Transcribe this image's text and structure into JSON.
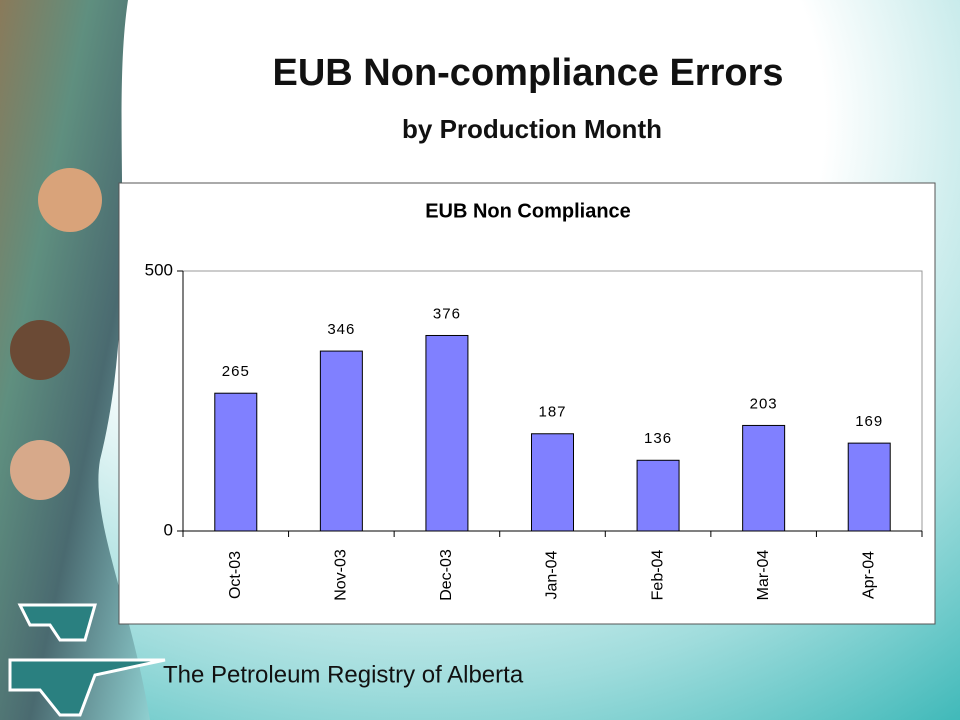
{
  "slide_title": "EUB Non-compliance Errors",
  "slide_subtitle": "by Production Month",
  "footer": "The Petroleum Registry of Alberta",
  "chart_data": {
    "type": "bar",
    "title": "EUB Non Compliance",
    "categories": [
      "Oct-03",
      "Nov-03",
      "Dec-03",
      "Jan-04",
      "Feb-04",
      "Mar-04",
      "Apr-04"
    ],
    "values": [
      265,
      346,
      376,
      187,
      136,
      203,
      169
    ],
    "color": "#8080ff",
    "ylim": [
      0,
      500
    ],
    "yticks": [
      0,
      500
    ],
    "grid": false,
    "value_labels_shown": true
  }
}
